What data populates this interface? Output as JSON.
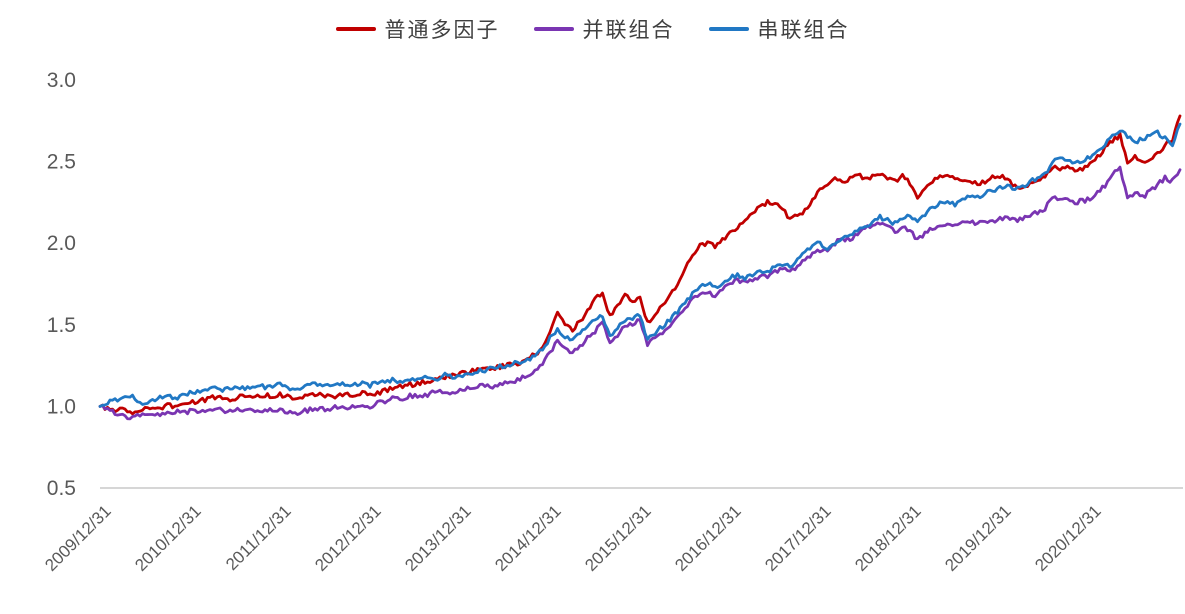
{
  "chart_data": {
    "type": "line",
    "title": "",
    "legend_position": "top-center",
    "grid": "off",
    "baseline_color": "#d6d6d6",
    "axis_label_color": "#595959",
    "legend_text_color": "#3f3f3f",
    "ylim": [
      0.5,
      3.0
    ],
    "y_tick_labels": [
      "3.0",
      "2.5",
      "2.0",
      "1.5",
      "1.0",
      "0.5"
    ],
    "x_tick_labels": [
      "2009/12/31",
      "2010/12/31",
      "2011/12/31",
      "2012/12/31",
      "2013/12/31",
      "2014/12/31",
      "2015/12/31",
      "2016/12/31",
      "2017/12/31",
      "2018/12/31",
      "2019/12/31",
      "2020/12/31"
    ],
    "x_unit": "monthly samples, index 0 = 2009/12, index 144 = 2021/12, ticks every 12 months",
    "legend": [
      {
        "label": "普通多因子",
        "color": "#C00000"
      },
      {
        "label": "并联组合",
        "color": "#7A35B2"
      },
      {
        "label": "串联组合",
        "color": "#2178C4"
      }
    ],
    "series": [
      {
        "name": "普通多因子",
        "color": "#C00000",
        "values": [
          1.0,
          0.99,
          0.97,
          0.98,
          0.96,
          0.97,
          0.98,
          1.0,
          0.99,
          1.01,
          1.0,
          1.01,
          1.02,
          1.03,
          1.04,
          1.06,
          1.05,
          1.04,
          1.05,
          1.06,
          1.05,
          1.06,
          1.07,
          1.06,
          1.07,
          1.06,
          1.05,
          1.06,
          1.07,
          1.08,
          1.07,
          1.06,
          1.07,
          1.08,
          1.07,
          1.08,
          1.07,
          1.08,
          1.1,
          1.11,
          1.12,
          1.14,
          1.13,
          1.15,
          1.16,
          1.17,
          1.18,
          1.19,
          1.2,
          1.21,
          1.22,
          1.24,
          1.23,
          1.24,
          1.25,
          1.26,
          1.27,
          1.29,
          1.32,
          1.36,
          1.45,
          1.58,
          1.5,
          1.47,
          1.52,
          1.58,
          1.66,
          1.7,
          1.55,
          1.62,
          1.68,
          1.64,
          1.67,
          1.51,
          1.56,
          1.62,
          1.68,
          1.75,
          1.85,
          1.93,
          1.99,
          2.0,
          1.98,
          2.02,
          2.06,
          2.1,
          2.15,
          2.19,
          2.22,
          2.25,
          2.24,
          2.22,
          2.14,
          2.17,
          2.2,
          2.27,
          2.33,
          2.36,
          2.39,
          2.37,
          2.4,
          2.42,
          2.39,
          2.41,
          2.43,
          2.4,
          2.38,
          2.41,
          2.37,
          2.28,
          2.34,
          2.38,
          2.41,
          2.42,
          2.4,
          2.37,
          2.39,
          2.36,
          2.38,
          2.4,
          2.41,
          2.39,
          2.35,
          2.33,
          2.37,
          2.39,
          2.41,
          2.47,
          2.45,
          2.46,
          2.44,
          2.46,
          2.48,
          2.53,
          2.58,
          2.63,
          2.66,
          2.5,
          2.53,
          2.49,
          2.52,
          2.55,
          2.6,
          2.64,
          2.78
        ]
      },
      {
        "name": "并联组合",
        "color": "#7A35B2",
        "values": [
          1.0,
          0.98,
          0.96,
          0.95,
          0.93,
          0.94,
          0.95,
          0.96,
          0.95,
          0.96,
          0.97,
          0.96,
          0.97,
          0.97,
          0.98,
          0.97,
          0.98,
          0.97,
          0.98,
          0.97,
          0.98,
          0.98,
          0.97,
          0.98,
          0.98,
          0.97,
          0.96,
          0.97,
          0.98,
          0.99,
          0.98,
          0.99,
          1.0,
          0.99,
          1.0,
          1.01,
          1.0,
          1.02,
          1.03,
          1.05,
          1.04,
          1.06,
          1.07,
          1.06,
          1.08,
          1.09,
          1.08,
          1.09,
          1.1,
          1.11,
          1.12,
          1.13,
          1.12,
          1.13,
          1.14,
          1.15,
          1.17,
          1.19,
          1.22,
          1.26,
          1.33,
          1.41,
          1.35,
          1.33,
          1.37,
          1.42,
          1.46,
          1.51,
          1.38,
          1.44,
          1.49,
          1.51,
          1.53,
          1.38,
          1.42,
          1.45,
          1.49,
          1.54,
          1.6,
          1.65,
          1.69,
          1.7,
          1.67,
          1.71,
          1.76,
          1.77,
          1.76,
          1.78,
          1.79,
          1.8,
          1.82,
          1.84,
          1.82,
          1.86,
          1.9,
          1.94,
          1.95,
          1.96,
          2.0,
          2.03,
          2.02,
          2.06,
          2.09,
          2.11,
          2.13,
          2.1,
          2.07,
          2.1,
          2.08,
          2.02,
          2.06,
          2.09,
          2.11,
          2.12,
          2.1,
          2.12,
          2.13,
          2.12,
          2.14,
          2.13,
          2.15,
          2.16,
          2.14,
          2.15,
          2.17,
          2.19,
          2.21,
          2.28,
          2.27,
          2.26,
          2.25,
          2.26,
          2.27,
          2.31,
          2.35,
          2.42,
          2.46,
          2.28,
          2.31,
          2.28,
          2.32,
          2.36,
          2.4,
          2.38,
          2.45
        ]
      },
      {
        "name": "串联组合",
        "color": "#2178C4",
        "values": [
          1.0,
          1.02,
          1.04,
          1.05,
          1.07,
          1.04,
          1.01,
          1.04,
          1.05,
          1.06,
          1.05,
          1.07,
          1.08,
          1.09,
          1.1,
          1.11,
          1.1,
          1.11,
          1.12,
          1.11,
          1.12,
          1.13,
          1.12,
          1.13,
          1.14,
          1.12,
          1.1,
          1.11,
          1.13,
          1.14,
          1.13,
          1.12,
          1.13,
          1.14,
          1.13,
          1.14,
          1.13,
          1.14,
          1.15,
          1.16,
          1.15,
          1.17,
          1.16,
          1.17,
          1.18,
          1.17,
          1.19,
          1.18,
          1.19,
          1.2,
          1.21,
          1.22,
          1.23,
          1.24,
          1.25,
          1.26,
          1.27,
          1.28,
          1.31,
          1.35,
          1.42,
          1.47,
          1.43,
          1.41,
          1.45,
          1.49,
          1.53,
          1.56,
          1.42,
          1.48,
          1.52,
          1.54,
          1.56,
          1.41,
          1.45,
          1.49,
          1.53,
          1.58,
          1.64,
          1.69,
          1.74,
          1.76,
          1.73,
          1.76,
          1.79,
          1.8,
          1.79,
          1.81,
          1.82,
          1.83,
          1.85,
          1.87,
          1.86,
          1.9,
          1.95,
          1.99,
          2.0,
          1.97,
          2.0,
          2.02,
          2.05,
          2.08,
          2.1,
          2.13,
          2.16,
          2.14,
          2.12,
          2.16,
          2.18,
          2.12,
          2.18,
          2.22,
          2.25,
          2.26,
          2.24,
          2.27,
          2.29,
          2.28,
          2.31,
          2.32,
          2.34,
          2.35,
          2.33,
          2.34,
          2.38,
          2.4,
          2.42,
          2.5,
          2.52,
          2.51,
          2.49,
          2.51,
          2.53,
          2.57,
          2.61,
          2.65,
          2.69,
          2.66,
          2.62,
          2.64,
          2.66,
          2.68,
          2.64,
          2.61,
          2.73
        ]
      }
    ]
  }
}
